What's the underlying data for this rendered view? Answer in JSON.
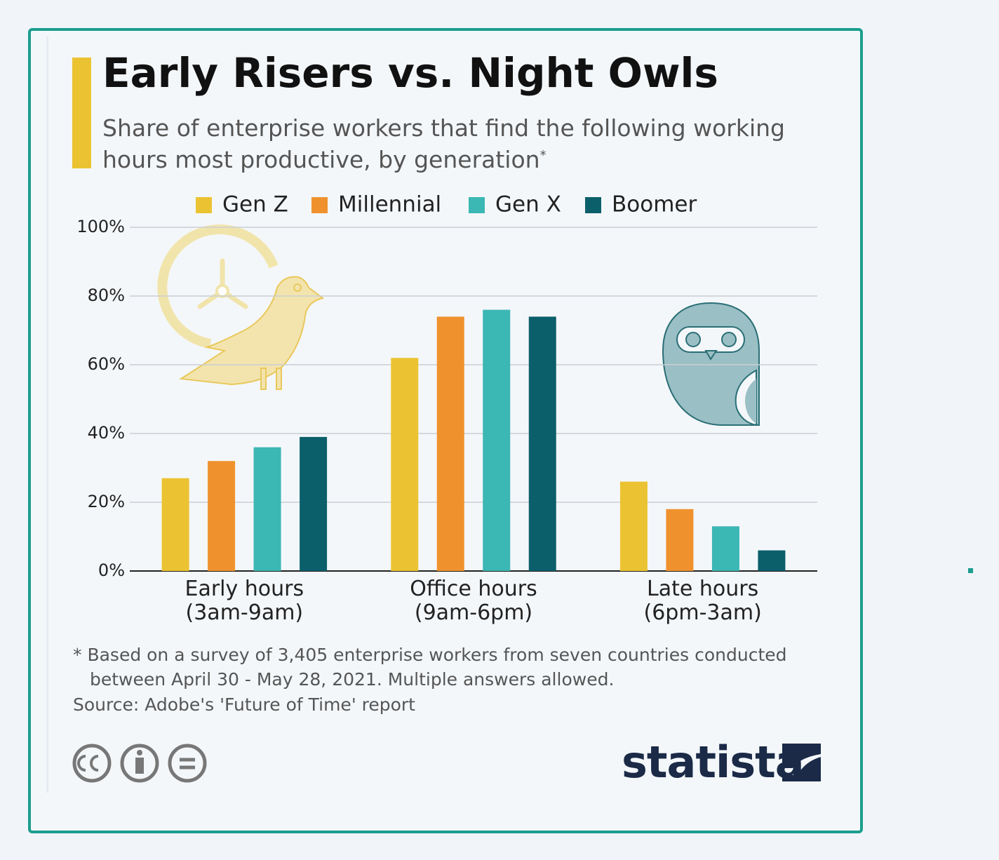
{
  "chart_data": {
    "type": "bar",
    "title": "Early Risers vs. Night Owls",
    "subtitle": "Share of enterprise workers that find the following working hours most productive, by generation",
    "subtitle_marker": "*",
    "categories": [
      "Early hours\n(3am-9am)",
      "Office hours\n(9am-6pm)",
      "Late hours\n(6pm-3am)"
    ],
    "series": [
      {
        "name": "Gen Z",
        "color": "#ebc332",
        "values": [
          27,
          62,
          26
        ]
      },
      {
        "name": "Millennial",
        "color": "#ef922e",
        "values": [
          32,
          74,
          18
        ]
      },
      {
        "name": "Gen X",
        "color": "#3bb7b4",
        "values": [
          36,
          76,
          13
        ]
      },
      {
        "name": "Boomer",
        "color": "#0b5f6b",
        "values": [
          39,
          74,
          6
        ]
      }
    ],
    "ylim": [
      0,
      100
    ],
    "yticks": [
      {
        "value": 0,
        "label": "0%"
      },
      {
        "value": 20,
        "label": "20%"
      },
      {
        "value": 40,
        "label": "40%"
      },
      {
        "value": 60,
        "label": "60%"
      },
      {
        "value": 80,
        "label": "80%"
      },
      {
        "value": 100,
        "label": "100%"
      }
    ],
    "grid": true,
    "legend": "top",
    "footnote": "* Based on a survey of 3,405 enterprise workers from seven countries conducted between April 30 - May 28, 2021. Multiple answers allowed.",
    "source": "Source: Adobe's 'Future of Time' report",
    "brand": "statista"
  }
}
